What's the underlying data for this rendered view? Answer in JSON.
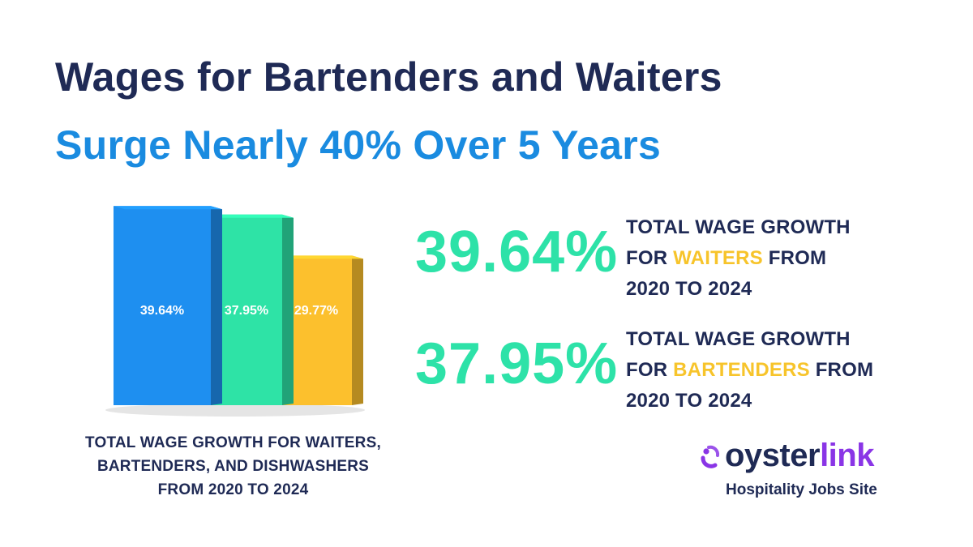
{
  "headline": {
    "line1": "Wages for Bartenders and Waiters",
    "line2": "Surge Nearly 40% Over 5 Years"
  },
  "chart_data": {
    "type": "bar",
    "categories": [
      "",
      "",
      ""
    ],
    "values": [
      39.64,
      37.95,
      29.77
    ],
    "labels": [
      "39.64%",
      "37.95%",
      "29.77%"
    ],
    "colors": [
      "#1e8ff0",
      "#2ee3a6",
      "#fcc02d"
    ],
    "title": "",
    "xlabel": "",
    "ylabel": "",
    "ylim": [
      0,
      40
    ],
    "caption": [
      "TOTAL WAGE GROWTH FOR WAITERS,",
      "BARTENDERS, AND DISHWASHERS",
      "FROM 2020 TO 2024"
    ]
  },
  "stats": [
    {
      "value": "39.64%",
      "line1": "TOTAL WAGE GROWTH",
      "line2_pre": "FOR ",
      "line2_highlight": "WAITERS",
      "line2_post": " FROM",
      "line3": "2020 TO 2024"
    },
    {
      "value": "37.95%",
      "line1": "TOTAL WAGE GROWTH",
      "line2_pre": "FOR ",
      "line2_highlight": "BARTENDERS",
      "line2_post": " FROM",
      "line3": "2020 TO 2024"
    }
  ],
  "colors": {
    "navy": "#1f2a55",
    "blue": "#1a8be0",
    "green": "#2de2a8",
    "yellow": "#f7c42b",
    "purple": "#8a35e6"
  },
  "brand": {
    "name_part1": "oyster",
    "name_part2": "link",
    "tagline": "Hospitality Jobs Site",
    "icon": "oysterlink-logo-icon"
  }
}
